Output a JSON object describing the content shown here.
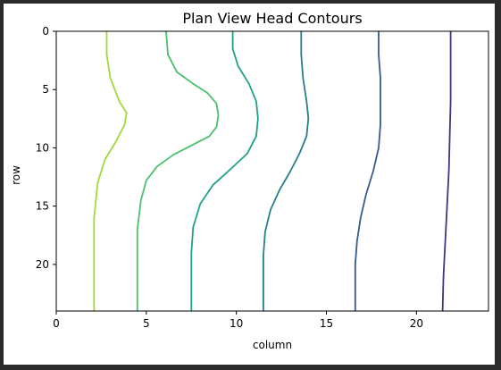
{
  "chart_data": {
    "type": "contour",
    "title": "Plan View Head Contours",
    "xlabel": "column",
    "ylabel": "row",
    "xlim": [
      0,
      24
    ],
    "ylim": [
      24,
      0
    ],
    "xticks": [
      0,
      5,
      10,
      15,
      20
    ],
    "yticks": [
      0,
      5,
      10,
      15,
      20
    ],
    "grid": false,
    "contours": [
      {
        "color": "#a0da39",
        "points": [
          [
            2.8,
            0
          ],
          [
            2.8,
            2
          ],
          [
            3.0,
            4
          ],
          [
            3.5,
            6
          ],
          [
            3.9,
            7
          ],
          [
            3.8,
            8
          ],
          [
            3.3,
            9.5
          ],
          [
            2.7,
            11
          ],
          [
            2.3,
            13
          ],
          [
            2.1,
            16
          ],
          [
            2.1,
            20
          ],
          [
            2.1,
            24
          ]
        ]
      },
      {
        "color": "#4ac16d",
        "points": [
          [
            6.1,
            0
          ],
          [
            6.2,
            2
          ],
          [
            6.7,
            3.5
          ],
          [
            7.6,
            4.5
          ],
          [
            8.4,
            5.3
          ],
          [
            8.9,
            6.2
          ],
          [
            9.0,
            7.2
          ],
          [
            8.9,
            8.2
          ],
          [
            8.5,
            9
          ],
          [
            7.5,
            9.8
          ],
          [
            6.5,
            10.6
          ],
          [
            5.6,
            11.6
          ],
          [
            5.0,
            12.8
          ],
          [
            4.7,
            14.5
          ],
          [
            4.5,
            17
          ],
          [
            4.5,
            20
          ],
          [
            4.5,
            24
          ]
        ]
      },
      {
        "color": "#1fa187",
        "points": [
          [
            9.8,
            0
          ],
          [
            9.8,
            1.5
          ],
          [
            10.1,
            3
          ],
          [
            10.7,
            4.5
          ],
          [
            11.1,
            6
          ],
          [
            11.2,
            7.5
          ],
          [
            11.1,
            9
          ],
          [
            10.6,
            10.5
          ],
          [
            9.7,
            11.8
          ],
          [
            8.7,
            13.2
          ],
          [
            8.0,
            14.8
          ],
          [
            7.6,
            16.8
          ],
          [
            7.5,
            19
          ],
          [
            7.5,
            21.5
          ],
          [
            7.5,
            24
          ]
        ]
      },
      {
        "color": "#277f8e",
        "points": [
          [
            13.6,
            0
          ],
          [
            13.6,
            2
          ],
          [
            13.7,
            4
          ],
          [
            13.9,
            6
          ],
          [
            14.0,
            7.5
          ],
          [
            13.9,
            9
          ],
          [
            13.5,
            10.5
          ],
          [
            13.0,
            12
          ],
          [
            12.4,
            13.6
          ],
          [
            11.9,
            15.3
          ],
          [
            11.6,
            17.2
          ],
          [
            11.5,
            19.2
          ],
          [
            11.5,
            21.5
          ],
          [
            11.5,
            24
          ]
        ]
      },
      {
        "color": "#365c8d",
        "points": [
          [
            17.9,
            0
          ],
          [
            17.9,
            2
          ],
          [
            18.0,
            4
          ],
          [
            18.0,
            6
          ],
          [
            18.0,
            8
          ],
          [
            17.9,
            10
          ],
          [
            17.6,
            12
          ],
          [
            17.2,
            14
          ],
          [
            16.9,
            16
          ],
          [
            16.7,
            18
          ],
          [
            16.6,
            20
          ],
          [
            16.6,
            22
          ],
          [
            16.6,
            24
          ]
        ]
      },
      {
        "color": "#46327e",
        "points": [
          [
            21.9,
            0
          ],
          [
            21.9,
            3
          ],
          [
            21.9,
            6
          ],
          [
            21.85,
            9
          ],
          [
            21.8,
            12
          ],
          [
            21.7,
            15
          ],
          [
            21.6,
            18
          ],
          [
            21.5,
            21
          ],
          [
            21.45,
            24
          ]
        ]
      }
    ]
  }
}
